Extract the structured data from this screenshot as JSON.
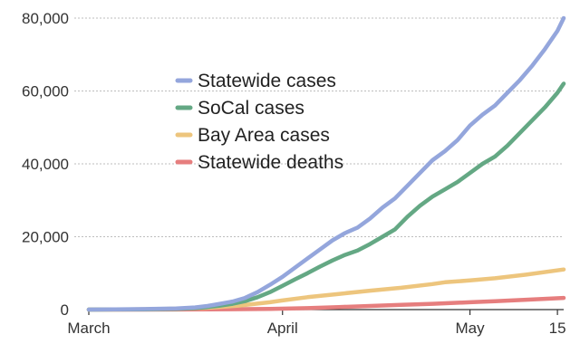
{
  "chart_data": {
    "type": "line",
    "title": "",
    "xlabel": "",
    "ylabel": "",
    "ylim": [
      0,
      80000
    ],
    "y_ticks": [
      {
        "value": 0,
        "label": "0"
      },
      {
        "value": 20000,
        "label": "20,000"
      },
      {
        "value": 40000,
        "label": "40,000"
      },
      {
        "value": 60000,
        "label": "60,000"
      },
      {
        "value": 80000,
        "label": "80,000"
      }
    ],
    "x_ticks": [
      {
        "value": "2020-03-01",
        "label": "March"
      },
      {
        "value": "2020-04-01",
        "label": "April"
      },
      {
        "value": "2020-05-01",
        "label": "May"
      },
      {
        "value": "2020-05-15",
        "label": "15"
      }
    ],
    "xlim": [
      "2020-03-01",
      "2020-05-16"
    ],
    "grid": true,
    "legend_position": "center-left",
    "series": [
      {
        "name": "Statewide cases",
        "color": "#94a6dc",
        "points": [
          [
            "2020-03-01",
            0
          ],
          [
            "2020-03-05",
            50
          ],
          [
            "2020-03-10",
            150
          ],
          [
            "2020-03-15",
            300
          ],
          [
            "2020-03-18",
            600
          ],
          [
            "2020-03-20",
            1000
          ],
          [
            "2020-03-22",
            1600
          ],
          [
            "2020-03-24",
            2200
          ],
          [
            "2020-03-26",
            3200
          ],
          [
            "2020-03-28",
            4800
          ],
          [
            "2020-03-30",
            6800
          ],
          [
            "2020-04-01",
            9000
          ],
          [
            "2020-04-03",
            11500
          ],
          [
            "2020-04-05",
            14000
          ],
          [
            "2020-04-07",
            16500
          ],
          [
            "2020-04-09",
            19000
          ],
          [
            "2020-04-11",
            21000
          ],
          [
            "2020-04-13",
            22500
          ],
          [
            "2020-04-15",
            25000
          ],
          [
            "2020-04-17",
            28000
          ],
          [
            "2020-04-19",
            30500
          ],
          [
            "2020-04-21",
            34000
          ],
          [
            "2020-04-23",
            37500
          ],
          [
            "2020-04-25",
            41000
          ],
          [
            "2020-04-27",
            43500
          ],
          [
            "2020-04-29",
            46500
          ],
          [
            "2020-05-01",
            50500
          ],
          [
            "2020-05-03",
            53500
          ],
          [
            "2020-05-05",
            56000
          ],
          [
            "2020-05-07",
            59500
          ],
          [
            "2020-05-09",
            63000
          ],
          [
            "2020-05-11",
            67000
          ],
          [
            "2020-05-13",
            71500
          ],
          [
            "2020-05-15",
            76500
          ],
          [
            "2020-05-16",
            80000
          ]
        ]
      },
      {
        "name": "SoCal cases",
        "color": "#64a884",
        "points": [
          [
            "2020-03-01",
            0
          ],
          [
            "2020-03-05",
            30
          ],
          [
            "2020-03-10",
            80
          ],
          [
            "2020-03-15",
            200
          ],
          [
            "2020-03-18",
            400
          ],
          [
            "2020-03-20",
            700
          ],
          [
            "2020-03-22",
            1100
          ],
          [
            "2020-03-24",
            1600
          ],
          [
            "2020-03-26",
            2300
          ],
          [
            "2020-03-28",
            3400
          ],
          [
            "2020-03-30",
            4800
          ],
          [
            "2020-04-01",
            6500
          ],
          [
            "2020-04-03",
            8300
          ],
          [
            "2020-04-05",
            10000
          ],
          [
            "2020-04-07",
            11800
          ],
          [
            "2020-04-09",
            13500
          ],
          [
            "2020-04-11",
            15000
          ],
          [
            "2020-04-13",
            16200
          ],
          [
            "2020-04-15",
            18000
          ],
          [
            "2020-04-17",
            20000
          ],
          [
            "2020-04-19",
            22000
          ],
          [
            "2020-04-21",
            25500
          ],
          [
            "2020-04-23",
            28500
          ],
          [
            "2020-04-25",
            31000
          ],
          [
            "2020-04-27",
            33000
          ],
          [
            "2020-04-29",
            35000
          ],
          [
            "2020-05-01",
            37500
          ],
          [
            "2020-05-03",
            40000
          ],
          [
            "2020-05-05",
            42000
          ],
          [
            "2020-05-07",
            45000
          ],
          [
            "2020-05-09",
            48500
          ],
          [
            "2020-05-11",
            52000
          ],
          [
            "2020-05-13",
            55500
          ],
          [
            "2020-05-15",
            59500
          ],
          [
            "2020-05-16",
            62000
          ]
        ]
      },
      {
        "name": "Bay Area cases",
        "color": "#edc57d",
        "points": [
          [
            "2020-03-01",
            0
          ],
          [
            "2020-03-05",
            30
          ],
          [
            "2020-03-10",
            100
          ],
          [
            "2020-03-15",
            250
          ],
          [
            "2020-03-20",
            500
          ],
          [
            "2020-03-25",
            1100
          ],
          [
            "2020-03-30",
            2000
          ],
          [
            "2020-04-01",
            2500
          ],
          [
            "2020-04-05",
            3400
          ],
          [
            "2020-04-10",
            4300
          ],
          [
            "2020-04-15",
            5200
          ],
          [
            "2020-04-20",
            6000
          ],
          [
            "2020-04-25",
            7000
          ],
          [
            "2020-04-27",
            7500
          ],
          [
            "2020-05-01",
            8000
          ],
          [
            "2020-05-05",
            8600
          ],
          [
            "2020-05-10",
            9600
          ],
          [
            "2020-05-16",
            11000
          ]
        ]
      },
      {
        "name": "Statewide deaths",
        "color": "#e67e7e",
        "points": [
          [
            "2020-03-01",
            0
          ],
          [
            "2020-03-10",
            5
          ],
          [
            "2020-03-20",
            50
          ],
          [
            "2020-03-30",
            200
          ],
          [
            "2020-04-05",
            400
          ],
          [
            "2020-04-10",
            700
          ],
          [
            "2020-04-15",
            1000
          ],
          [
            "2020-04-20",
            1300
          ],
          [
            "2020-04-25",
            1600
          ],
          [
            "2020-05-01",
            2000
          ],
          [
            "2020-05-05",
            2300
          ],
          [
            "2020-05-10",
            2700
          ],
          [
            "2020-05-16",
            3200
          ]
        ]
      }
    ]
  }
}
